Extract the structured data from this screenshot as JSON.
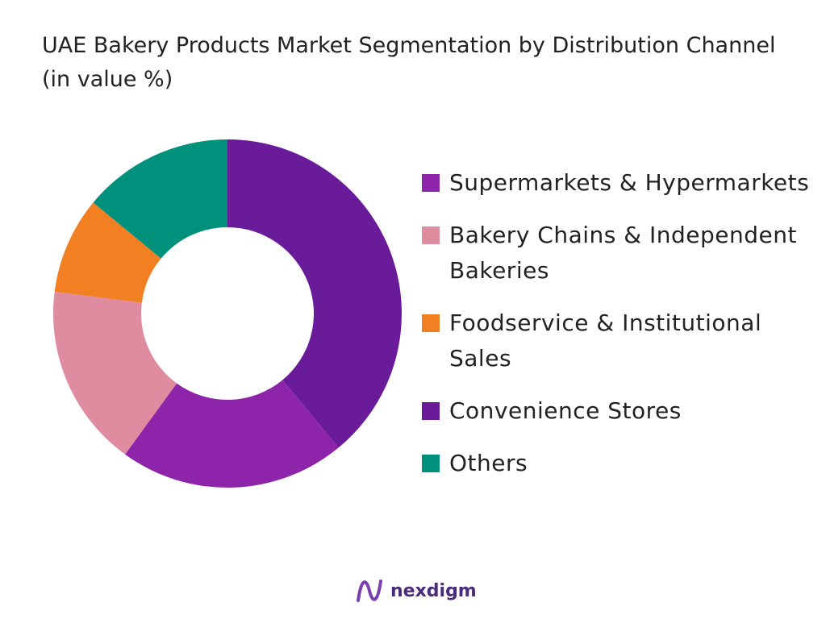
{
  "chart_data": {
    "type": "donut",
    "title": "UAE Bakery Products Market Segmentation by Distribution Channel (in value %)",
    "series": [
      {
        "name": "Supermarkets & Hypermarkets",
        "color": "#8e24aa",
        "value": 21
      },
      {
        "name": "Bakery Chains & Independent Bakeries",
        "color": "#df8ba0",
        "value": 17
      },
      {
        "name": "Foodservice & Institutional Sales",
        "color": "#f28022",
        "value": 9
      },
      {
        "name": "Convenience Stores",
        "color": "#6a1b9a",
        "value": 39
      },
      {
        "name": "Others",
        "color": "#00917c",
        "value": 14
      }
    ]
  },
  "logo": "nexdigm"
}
